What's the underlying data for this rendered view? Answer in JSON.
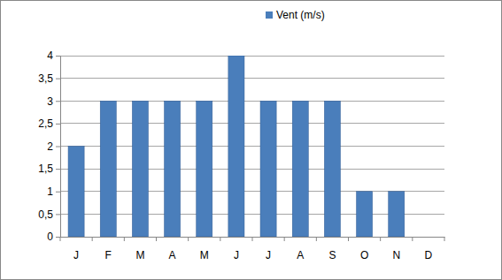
{
  "chart_data": {
    "type": "bar",
    "categories": [
      "J",
      "F",
      "M",
      "A",
      "M",
      "J",
      "J",
      "A",
      "S",
      "O",
      "N",
      "D"
    ],
    "series": [
      {
        "name": "Vent (m/s)",
        "color": "#4a7ebb",
        "values": [
          2,
          3,
          3,
          3,
          3,
          4,
          3,
          3,
          3,
          1,
          1,
          0
        ]
      }
    ],
    "ylim": [
      0,
      4
    ],
    "yticks": [
      0,
      {
        "value": 0.5,
        "label": "0,5"
      },
      1,
      {
        "value": 1.5,
        "label": "1,5"
      },
      2,
      {
        "value": 2.5,
        "label": "2,5"
      },
      3,
      {
        "value": 3.5,
        "label": "3,5"
      },
      4
    ],
    "grid": true,
    "legend": "top"
  }
}
